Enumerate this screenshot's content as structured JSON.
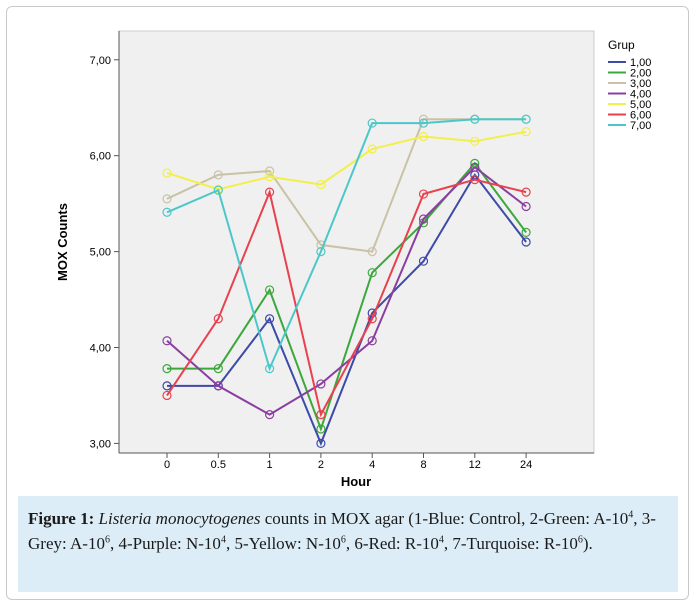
{
  "chart_data": {
    "type": "line",
    "xlabel": "Hour",
    "ylabel": "MOX Counts",
    "categories": [
      "0",
      "0.5",
      "1",
      "2",
      "4",
      "8",
      "12",
      "24"
    ],
    "ylim": [
      2.9,
      7.3
    ],
    "yticks": [
      3,
      4,
      5,
      6,
      7
    ],
    "ytick_labels": [
      "3,00",
      "4,00",
      "5,00",
      "6,00",
      "7,00"
    ],
    "grid": false,
    "legend_title": "Grup",
    "legend_position": "top-right",
    "series": [
      {
        "name": "1,00",
        "color": "#3c4aa8",
        "values": [
          3.6,
          3.6,
          4.3,
          3.0,
          4.36,
          4.9,
          5.8,
          5.1
        ]
      },
      {
        "name": "2,00",
        "color": "#3ca83c",
        "values": [
          3.78,
          3.78,
          4.6,
          3.15,
          4.78,
          5.3,
          5.92,
          5.2
        ]
      },
      {
        "name": "3,00",
        "color": "#c9c2a6",
        "values": [
          5.55,
          5.8,
          5.84,
          5.07,
          5.0,
          6.38,
          6.38,
          6.38
        ]
      },
      {
        "name": "4,00",
        "color": "#8a3fa0",
        "values": [
          4.07,
          3.6,
          3.3,
          3.62,
          4.07,
          5.34,
          5.88,
          5.47
        ]
      },
      {
        "name": "5,00",
        "color": "#f2ef4a",
        "values": [
          5.82,
          5.65,
          5.78,
          5.7,
          6.07,
          6.2,
          6.15,
          6.25
        ]
      },
      {
        "name": "6,00",
        "color": "#e8414f",
        "values": [
          3.5,
          4.3,
          5.62,
          3.3,
          4.3,
          5.6,
          5.75,
          5.62
        ]
      },
      {
        "name": "7,00",
        "color": "#4cc7c9",
        "values": [
          5.41,
          5.64,
          3.78,
          5.0,
          6.34,
          6.34,
          6.38,
          6.38
        ]
      }
    ]
  },
  "caption": {
    "label": "Figure 1:",
    "species": "Listeria monocytogenes",
    "t1": " counts in MOX agar (1-Blue: Control, 2-Green: A-10",
    "s1": "4",
    "t2": ", 3-Grey: A-10",
    "s2": "6",
    "t3": ", 4-Purple: N-10",
    "s3": "4",
    "t4": ", 5-Yellow: N-10",
    "s4": "6",
    "t5": ", 6-Red: R-10",
    "s5": "4",
    "t6": ", 7-Turquoise: R-10",
    "s6": "6",
    "t7": ")."
  }
}
